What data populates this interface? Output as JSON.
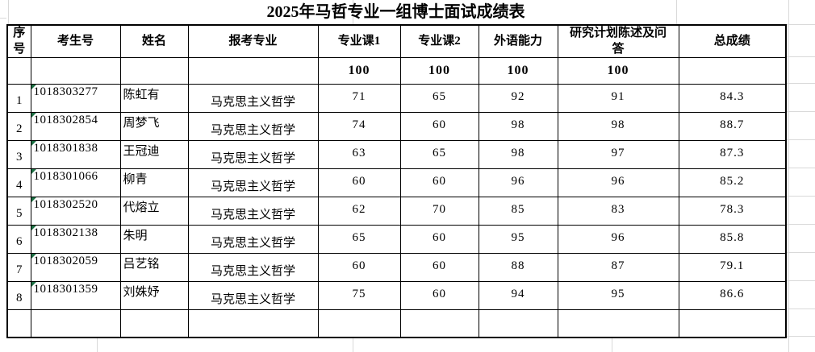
{
  "colors": {
    "indicator_triangle": "#1e7145",
    "table_border": "#000000",
    "gridline": "#d9d9d9"
  },
  "title": "2025年马哲专业一组博士面试成绩表",
  "table": {
    "columns": [
      "序号",
      "考生号",
      "姓名",
      "报考专业",
      "专业课1",
      "专业课2",
      "外语能力",
      "研究计划陈述及问答",
      "总成绩"
    ],
    "max_scores": [
      "",
      "",
      "",
      "",
      "100",
      "100",
      "100",
      "100",
      ""
    ],
    "rows": [
      {
        "no": "1",
        "id": "1018303277",
        "name": "陈虹有",
        "major": "马克思主义哲学",
        "course1": "71",
        "course2": "65",
        "language": "92",
        "plan": "91",
        "total": "84.3"
      },
      {
        "no": "2",
        "id": "1018302854",
        "name": "周梦飞",
        "major": "马克思主义哲学",
        "course1": "74",
        "course2": "60",
        "language": "98",
        "plan": "98",
        "total": "88.7"
      },
      {
        "no": "3",
        "id": "1018301838",
        "name": "王冠迪",
        "major": "马克思主义哲学",
        "course1": "63",
        "course2": "65",
        "language": "98",
        "plan": "97",
        "total": "87.3"
      },
      {
        "no": "4",
        "id": "1018301066",
        "name": "柳青",
        "major": "马克思主义哲学",
        "course1": "60",
        "course2": "60",
        "language": "96",
        "plan": "96",
        "total": "85.2"
      },
      {
        "no": "5",
        "id": "1018302520",
        "name": "代熔立",
        "major": "马克思主义哲学",
        "course1": "62",
        "course2": "70",
        "language": "85",
        "plan": "83",
        "total": "78.3"
      },
      {
        "no": "6",
        "id": "1018302138",
        "name": "朱明",
        "major": "马克思主义哲学",
        "course1": "65",
        "course2": "60",
        "language": "95",
        "plan": "96",
        "total": "85.8"
      },
      {
        "no": "7",
        "id": "1018302059",
        "name": "吕艺铭",
        "major": "马克思主义哲学",
        "course1": "60",
        "course2": "60",
        "language": "88",
        "plan": "87",
        "total": "79.1"
      },
      {
        "no": "8",
        "id": "1018301359",
        "name": "刘姝妤",
        "major": "马克思主义哲学",
        "course1": "75",
        "course2": "60",
        "language": "94",
        "plan": "95",
        "total": "86.6"
      }
    ]
  }
}
